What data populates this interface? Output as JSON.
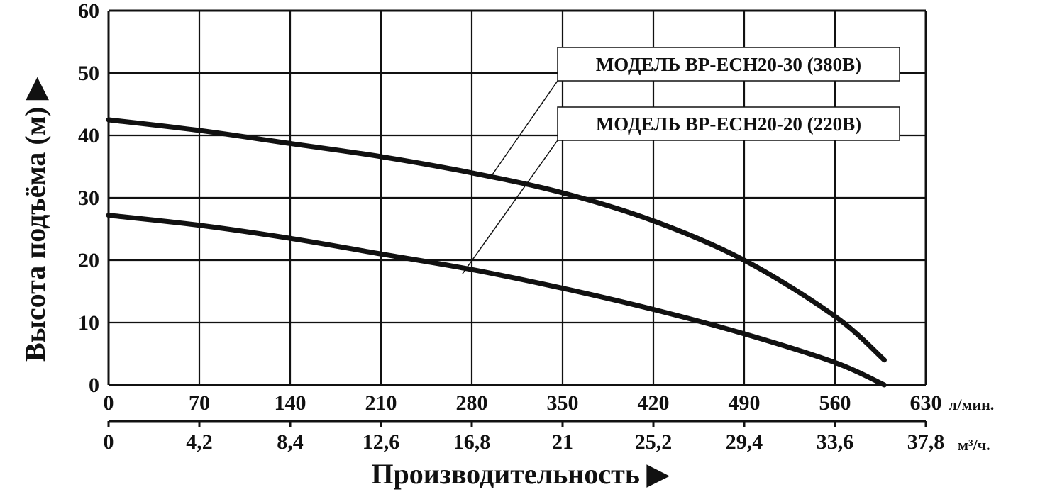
{
  "chart_data": {
    "type": "line",
    "ylabel": "Высота подъёма (м) ▶",
    "xlabel": "Производительность ▶",
    "ylim": [
      0,
      60
    ],
    "xlim": [
      0,
      630
    ],
    "y_ticks": [
      "0",
      "10",
      "20",
      "30",
      "40",
      "50",
      "60"
    ],
    "x_ticks_primary": [
      "0",
      "70",
      "140",
      "210",
      "280",
      "350",
      "420",
      "490",
      "560",
      "630"
    ],
    "x_unit_primary": "л/мин.",
    "x_ticks_secondary": [
      "0",
      "4,2",
      "8,4",
      "12,6",
      "16,8",
      "21",
      "25,2",
      "29,4",
      "33,6",
      "37,8"
    ],
    "x_unit_secondary": "м³/ч.",
    "grid": true,
    "series": [
      {
        "name": "МОДЕЛЬ BP-ECH20-30 (380В)",
        "x": [
          0,
          70,
          140,
          210,
          280,
          350,
          420,
          490,
          560,
          598
        ],
        "y": [
          42.5,
          40.8,
          38.7,
          36.6,
          34.0,
          30.8,
          26.3,
          20.0,
          11.0,
          4.0
        ]
      },
      {
        "name": "МОДЕЛЬ BP-ECH20-20 (220В)",
        "x": [
          0,
          70,
          140,
          210,
          280,
          350,
          420,
          490,
          560,
          598
        ],
        "y": [
          27.2,
          25.6,
          23.5,
          21.0,
          18.5,
          15.5,
          12.1,
          8.2,
          3.6,
          0.0
        ]
      }
    ]
  }
}
